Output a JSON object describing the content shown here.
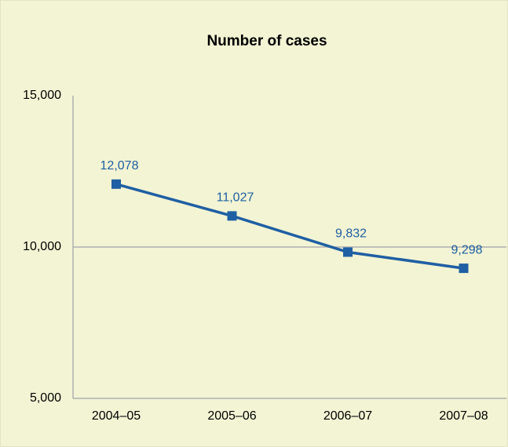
{
  "chart_data": {
    "type": "line",
    "title": "Number of cases",
    "categories": [
      "2004–05",
      "2005–06",
      "2006–07",
      "2007–08"
    ],
    "series": [
      {
        "name": "Number of cases",
        "color": "#1f5fa3",
        "values": [
          12078,
          11027,
          9832,
          9298
        ],
        "value_labels": [
          "12,078",
          "11,027",
          "9,832",
          "9,298"
        ]
      }
    ],
    "ylim": [
      5000,
      15000
    ],
    "yticks": [
      {
        "value": 5000,
        "label": "5,000"
      },
      {
        "value": 10000,
        "label": "10,000"
      },
      {
        "value": 15000,
        "label": "15,000"
      }
    ],
    "grid": true
  }
}
